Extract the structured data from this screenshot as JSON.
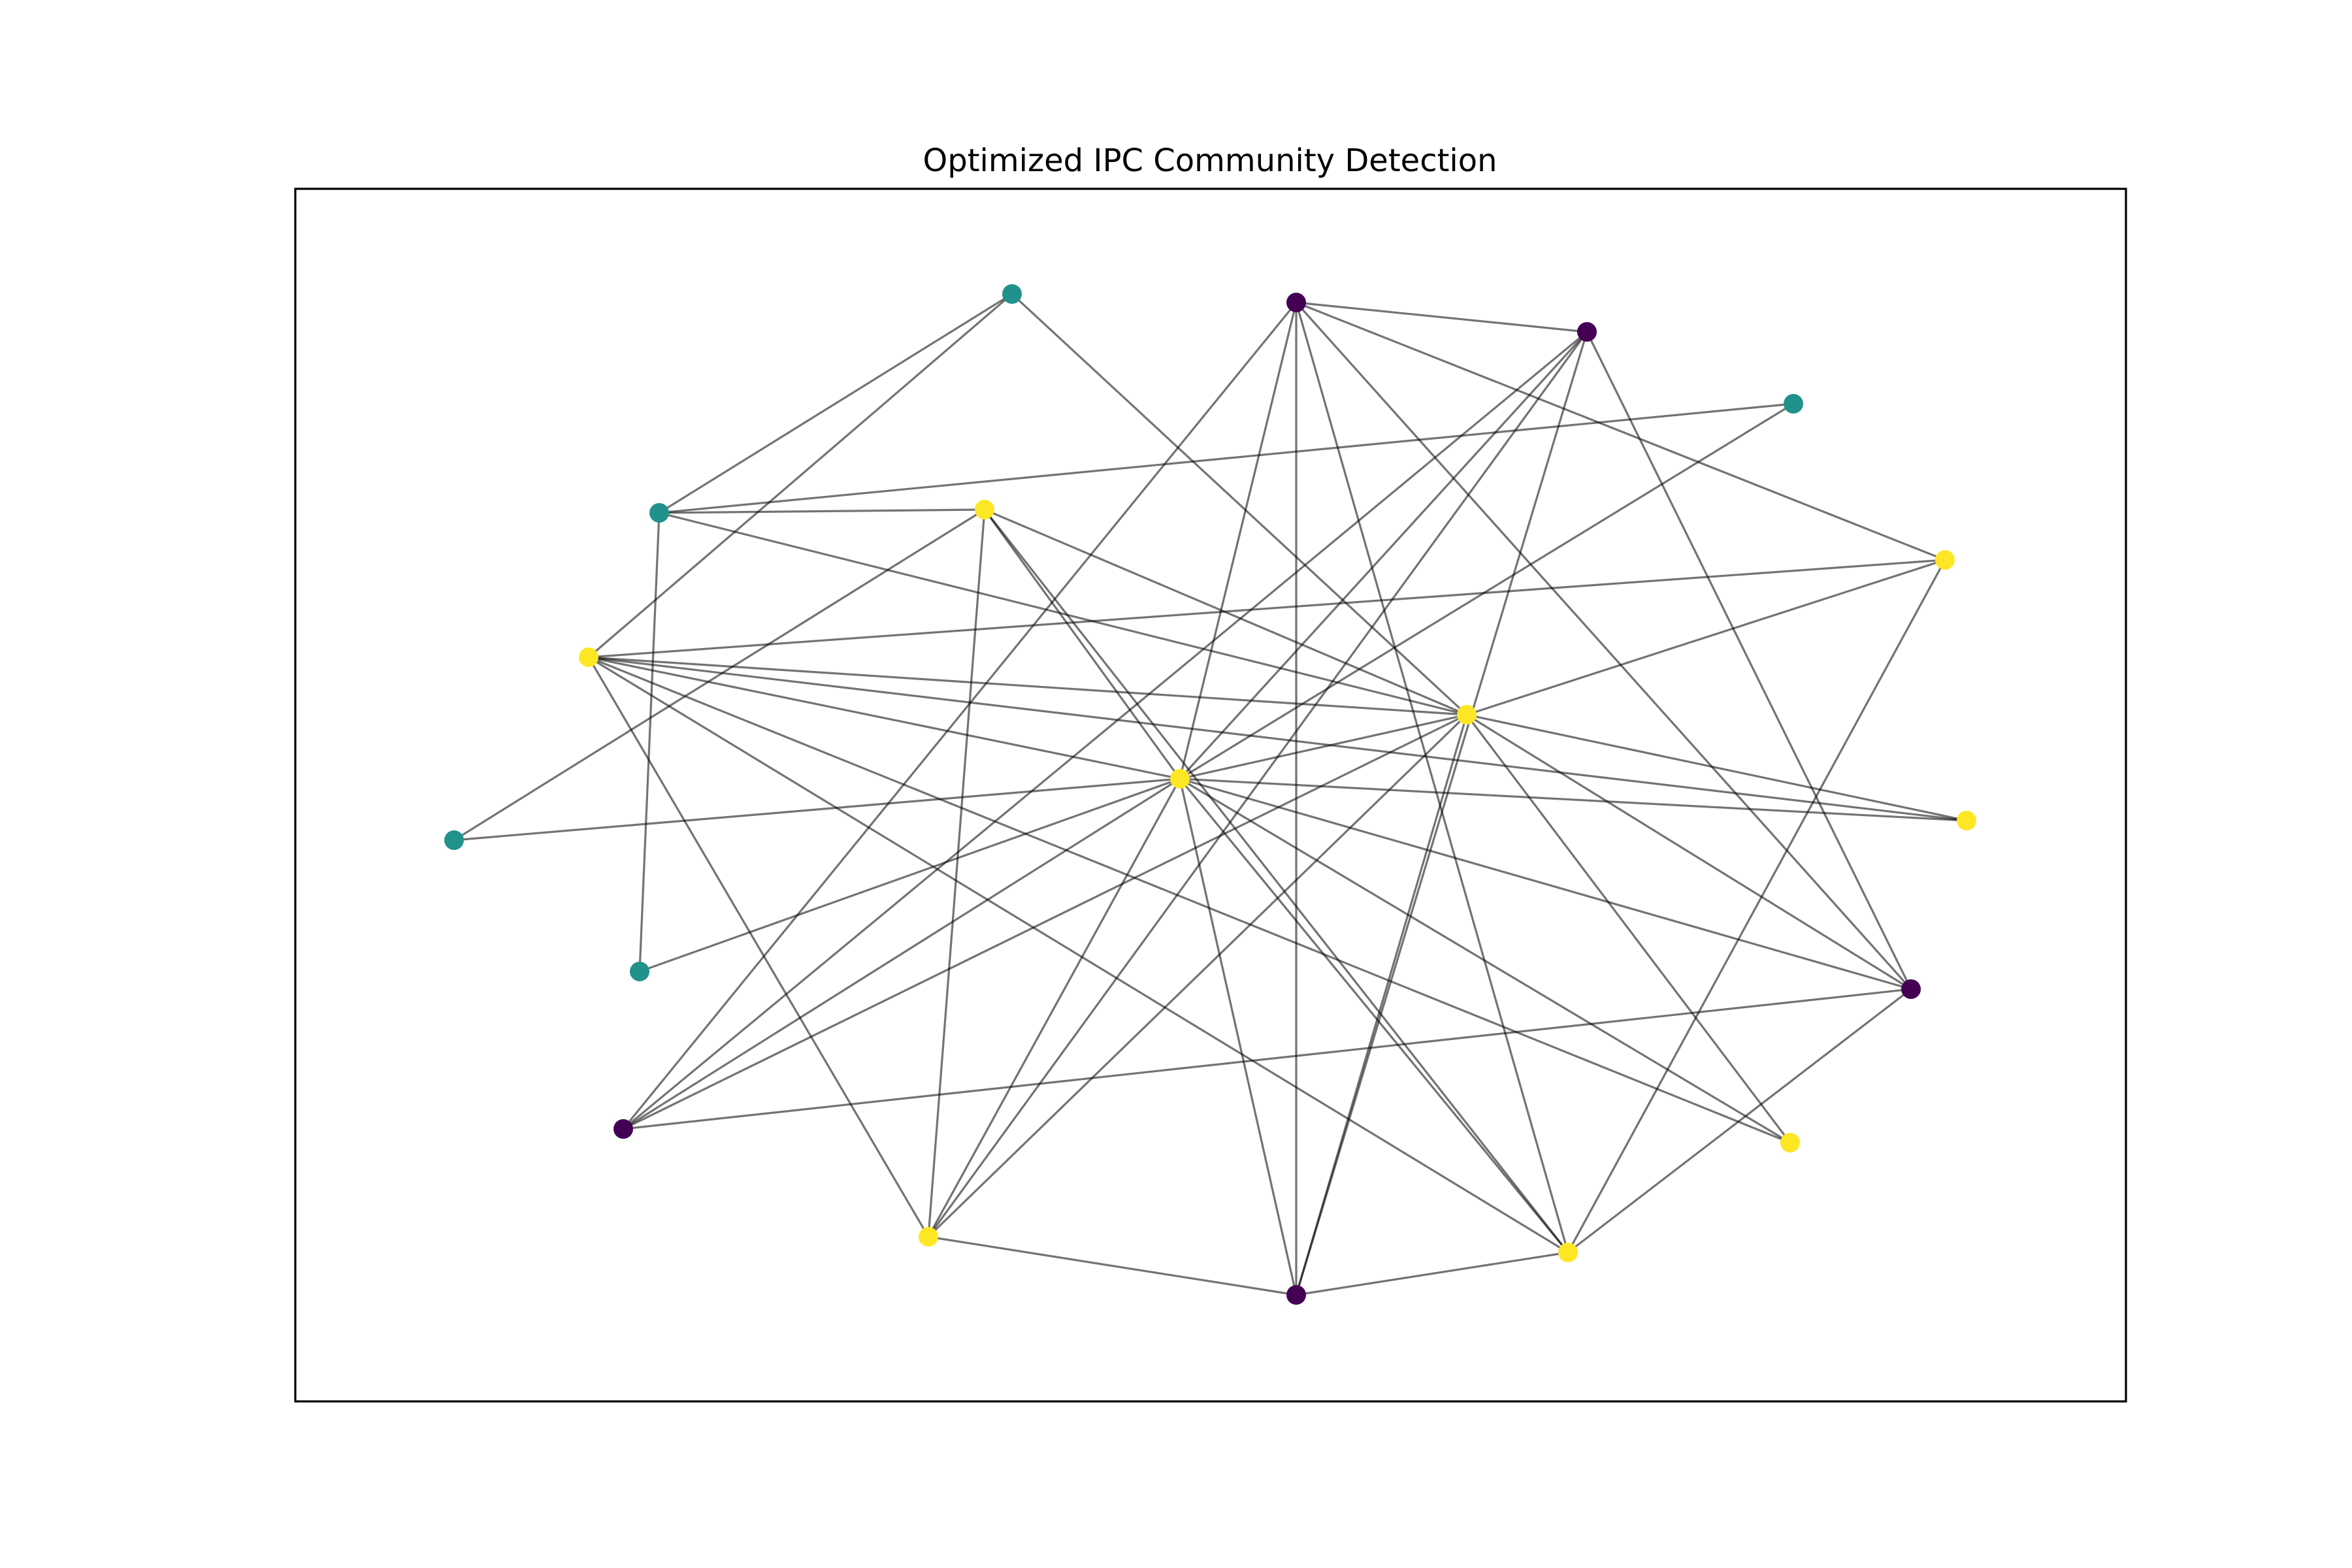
{
  "title": "Optimized IPC Community Detection",
  "community_colors": {
    "0": "#440154",
    "1": "#21918c",
    "2": "#fde725"
  },
  "nodes": [
    {
      "id": "n0",
      "community": 1
    },
    {
      "id": "n1",
      "community": 0
    },
    {
      "id": "n2",
      "community": 0
    },
    {
      "id": "n3",
      "community": 1
    },
    {
      "id": "n4",
      "community": 1
    },
    {
      "id": "n5",
      "community": 2
    },
    {
      "id": "n6",
      "community": 2
    },
    {
      "id": "n7",
      "community": 2
    },
    {
      "id": "n8",
      "community": 2
    },
    {
      "id": "n9",
      "community": 2
    },
    {
      "id": "n10",
      "community": 2
    },
    {
      "id": "n11",
      "community": 1
    },
    {
      "id": "n12",
      "community": 1
    },
    {
      "id": "n13",
      "community": 0
    },
    {
      "id": "n14",
      "community": 0
    },
    {
      "id": "n15",
      "community": 2
    },
    {
      "id": "n16",
      "community": 2
    },
    {
      "id": "n17",
      "community": 0
    },
    {
      "id": "n18",
      "community": 2
    }
  ],
  "edges": [
    [
      "n0",
      "n4"
    ],
    [
      "n0",
      "n6"
    ],
    [
      "n0",
      "n9"
    ],
    [
      "n1",
      "n2"
    ],
    [
      "n1",
      "n17"
    ],
    [
      "n1",
      "n14"
    ],
    [
      "n1",
      "n7"
    ],
    [
      "n1",
      "n8"
    ],
    [
      "n1",
      "n18"
    ],
    [
      "n1",
      "n13"
    ],
    [
      "n2",
      "n17"
    ],
    [
      "n2",
      "n14"
    ],
    [
      "n2",
      "n13"
    ],
    [
      "n2",
      "n8"
    ],
    [
      "n2",
      "n16"
    ],
    [
      "n3",
      "n8"
    ],
    [
      "n3",
      "n4"
    ],
    [
      "n4",
      "n3"
    ],
    [
      "n4",
      "n5"
    ],
    [
      "n4",
      "n12"
    ],
    [
      "n4",
      "n9"
    ],
    [
      "n5",
      "n18"
    ],
    [
      "n5",
      "n8"
    ],
    [
      "n5",
      "n9"
    ],
    [
      "n5",
      "n11"
    ],
    [
      "n5",
      "n16"
    ],
    [
      "n6",
      "n8"
    ],
    [
      "n6",
      "n9"
    ],
    [
      "n6",
      "n10"
    ],
    [
      "n6",
      "n16"
    ],
    [
      "n6",
      "n15"
    ],
    [
      "n6",
      "n7"
    ],
    [
      "n6",
      "n18"
    ],
    [
      "n7",
      "n18"
    ],
    [
      "n7",
      "n9"
    ],
    [
      "n8",
      "n10"
    ],
    [
      "n8",
      "n15"
    ],
    [
      "n8",
      "n11"
    ],
    [
      "n8",
      "n12"
    ],
    [
      "n8",
      "n13"
    ],
    [
      "n8",
      "n18"
    ],
    [
      "n8",
      "n16"
    ],
    [
      "n8",
      "n17"
    ],
    [
      "n8",
      "n14"
    ],
    [
      "n8",
      "n9"
    ],
    [
      "n9",
      "n16"
    ],
    [
      "n9",
      "n15"
    ],
    [
      "n9",
      "n10"
    ],
    [
      "n9",
      "n14"
    ],
    [
      "n9",
      "n13"
    ],
    [
      "n9",
      "n17"
    ],
    [
      "n13",
      "n14"
    ],
    [
      "n13",
      "n18"
    ],
    [
      "n17",
      "n16"
    ],
    [
      "n18",
      "n17"
    ]
  ]
}
